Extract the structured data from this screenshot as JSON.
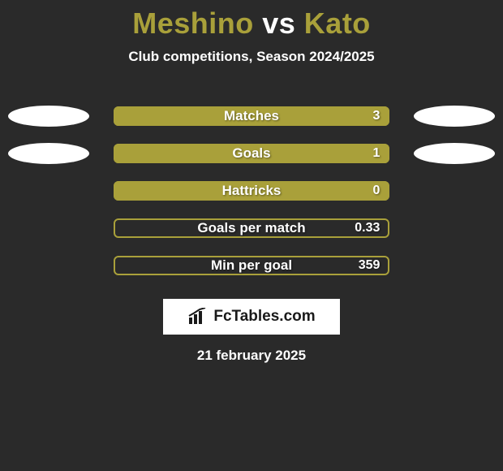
{
  "title": {
    "player1": "Meshino",
    "vs": "vs",
    "player2": "Kato",
    "color1": "#a9a03a",
    "color_vs": "#ffffff",
    "color2": "#a9a03a"
  },
  "subtitle": "Club competitions, Season 2024/2025",
  "rows": [
    {
      "label": "Matches",
      "value": "3",
      "fill_pct": 100,
      "fill_color": "#a9a03a",
      "border_color": "#a9a03a",
      "show_ellipses": true
    },
    {
      "label": "Goals",
      "value": "1",
      "fill_pct": 100,
      "fill_color": "#a9a03a",
      "border_color": "#a9a03a",
      "show_ellipses": true
    },
    {
      "label": "Hattricks",
      "value": "0",
      "fill_pct": 100,
      "fill_color": "#a9a03a",
      "border_color": "#a9a03a",
      "show_ellipses": false
    },
    {
      "label": "Goals per match",
      "value": "0.33",
      "fill_pct": 0,
      "fill_color": "#a9a03a",
      "border_color": "#a9a03a",
      "show_ellipses": false
    },
    {
      "label": "Min per goal",
      "value": "359",
      "fill_pct": 0,
      "fill_color": "#a9a03a",
      "border_color": "#a9a03a",
      "show_ellipses": false
    }
  ],
  "logo": {
    "text": "FcTables.com"
  },
  "date": "21 february 2025",
  "background_color": "#2a2a2a"
}
